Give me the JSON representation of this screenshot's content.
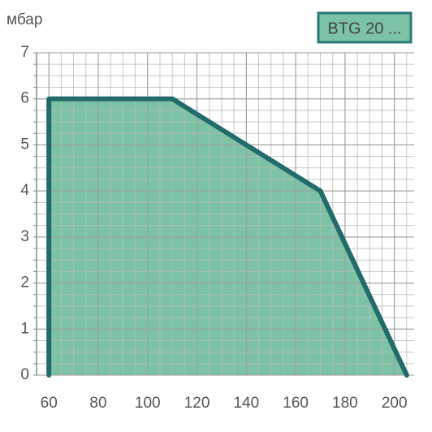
{
  "chart_data": {
    "type": "area",
    "y_label": "мбар",
    "x": [
      60,
      60,
      110,
      170,
      205
    ],
    "series": [
      {
        "name": "BTG 20 ...",
        "color": "#7cc3a6",
        "line_color": "#226b6b",
        "values": [
          0,
          6,
          6,
          4,
          0
        ]
      }
    ],
    "xlim": [
      55,
      208
    ],
    "xticks": [
      60,
      80,
      100,
      120,
      140,
      160,
      180,
      200
    ],
    "ylim": [
      0,
      7
    ],
    "yticks": [
      0,
      1,
      2,
      3,
      4,
      5,
      6,
      7
    ],
    "grid": true,
    "legend": "top-right"
  }
}
